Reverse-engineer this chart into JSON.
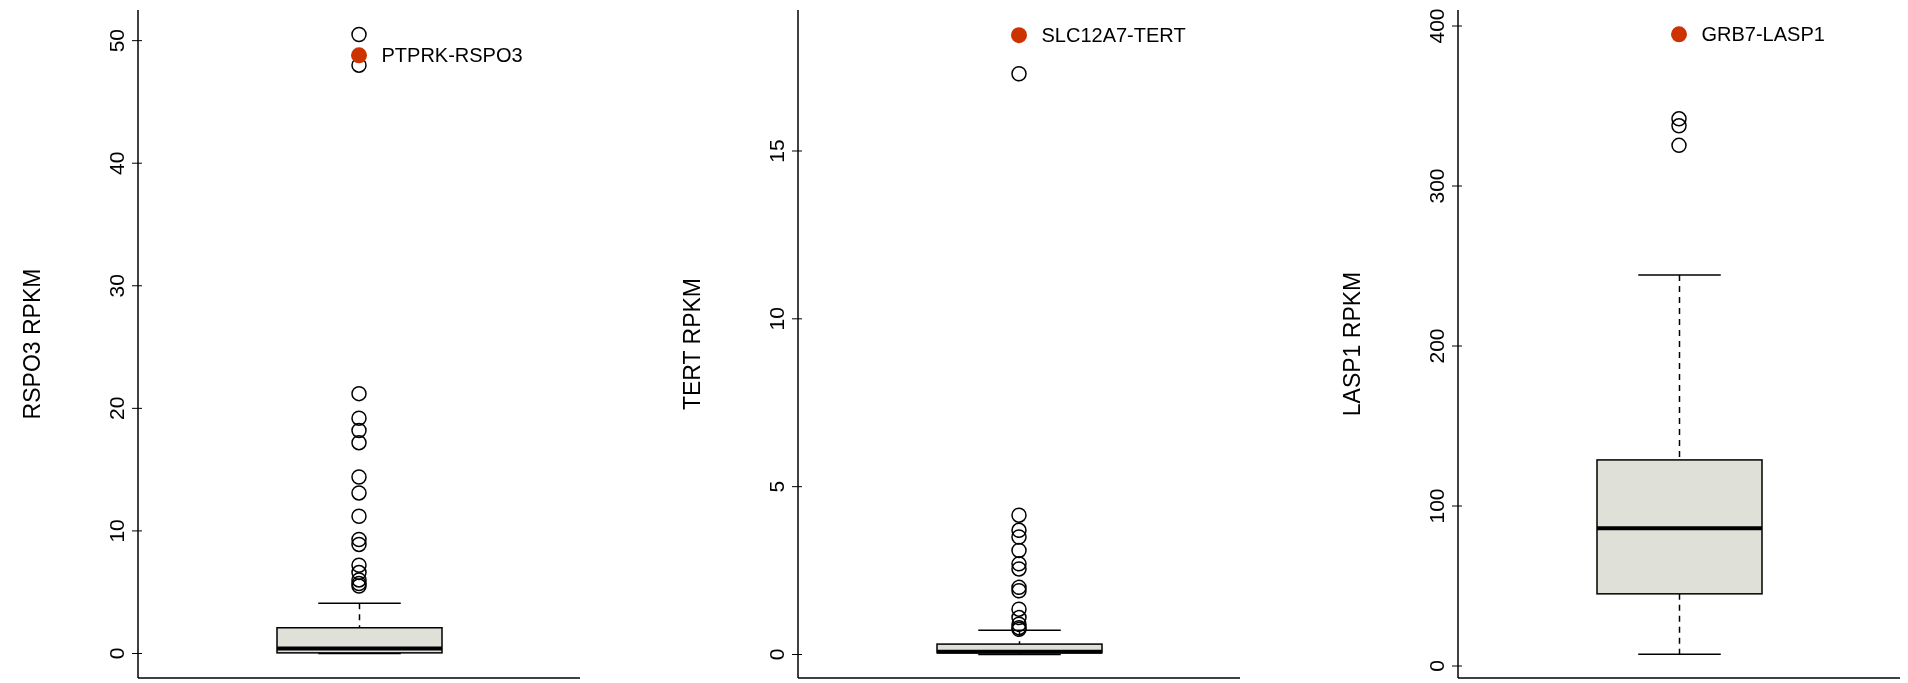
{
  "chart_data": [
    {
      "type": "box",
      "categories": [
        null
      ],
      "ylabel": "RSPO3 RPKM",
      "ylim": [
        -2,
        52.5
      ],
      "yticks": [
        0,
        10,
        20,
        30,
        40,
        50
      ],
      "series": [
        {
          "type": "box",
          "color": "#dfe1d9",
          "boxes": [
            {
              "low": 0,
              "q1": 0.05,
              "median": 0.4,
              "q3": 2.1,
              "high": 4.1,
              "outliers": [
                50.5,
                48,
                21.2,
                19.2,
                18.2,
                17.2,
                14.4,
                13.1,
                11.2,
                9.3,
                8.9,
                7.2,
                6.6,
                6.0,
                5.7,
                5.5
              ]
            }
          ]
        },
        {
          "type": "scatter",
          "name": "PTPRK-RSPO3",
          "color": "#cc3300",
          "values": [
            48.8
          ]
        }
      ]
    },
    {
      "type": "box",
      "categories": [
        null
      ],
      "ylabel": "TERT RPKM",
      "ylim": [
        -0.7,
        19.2
      ],
      "yticks": [
        0,
        5,
        10,
        15
      ],
      "series": [
        {
          "type": "box",
          "color": "#dfe1d9",
          "boxes": [
            {
              "low": 0,
              "q1": 0.05,
              "median": 0.08,
              "q3": 0.31,
              "high": 0.72,
              "outliers": [
                17.3,
                4.15,
                3.7,
                3.5,
                3.1,
                2.7,
                2.55,
                2.0,
                1.9,
                1.35,
                1.1,
                0.9,
                0.8,
                0.75
              ]
            }
          ]
        },
        {
          "type": "scatter",
          "name": "SLC12A7-TERT",
          "color": "#cc3300",
          "values": [
            18.45
          ]
        }
      ]
    },
    {
      "type": "box",
      "categories": [
        null
      ],
      "ylabel": "LASP1 RPKM",
      "ylim": [
        -7.5,
        410
      ],
      "yticks": [
        0,
        100,
        200,
        300,
        400
      ],
      "series": [
        {
          "type": "box",
          "color": "#dfe1d9",
          "boxes": [
            {
              "low": 7.3,
              "q1": 45.1,
              "median": 86.1,
              "q3": 128.8,
              "high": 244.3,
              "outliers": [
                342,
                337.6,
                325.4
              ]
            }
          ]
        },
        {
          "type": "scatter",
          "name": "GRB7-LASP1",
          "color": "#cc3300",
          "values": [
            394.8
          ]
        }
      ]
    }
  ]
}
